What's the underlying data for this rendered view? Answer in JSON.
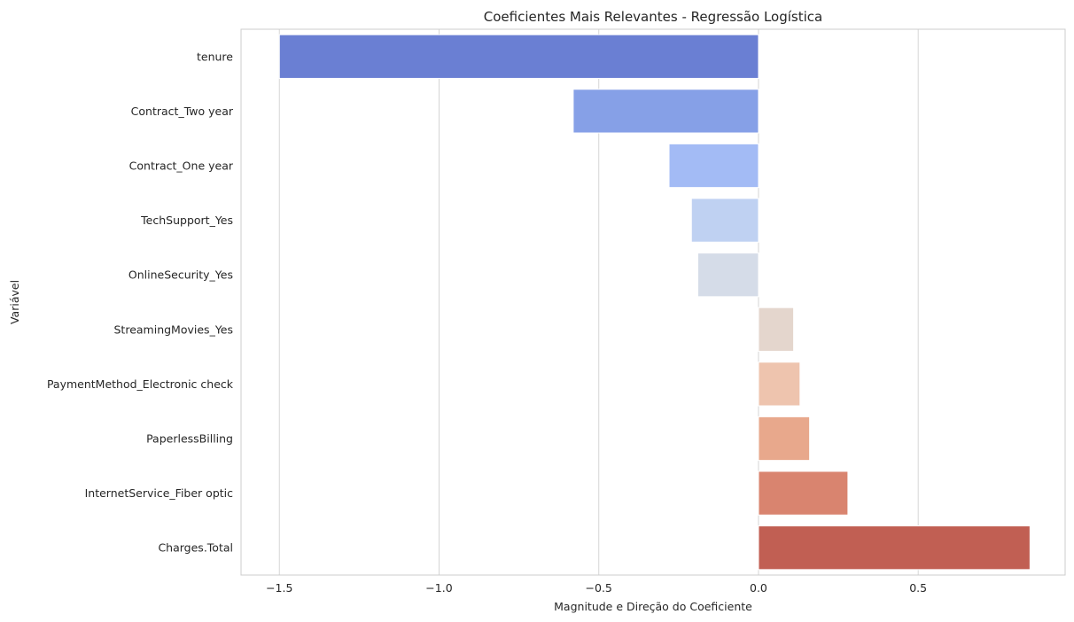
{
  "chart_data": {
    "type": "bar",
    "orientation": "horizontal",
    "title": "Coeficientes Mais Relevantes - Regressão Logística",
    "xlabel": "Magnitude e Direção do Coeficiente",
    "ylabel": "Variável",
    "categories": [
      "tenure",
      "Contract_Two year",
      "Contract_One year",
      "TechSupport_Yes",
      "OnlineSecurity_Yes",
      "StreamingMovies_Yes",
      "PaymentMethod_Electronic check",
      "PaperlessBilling",
      "InternetService_Fiber optic",
      "Charges.Total"
    ],
    "values": [
      -1.5,
      -0.58,
      -0.28,
      -0.21,
      -0.19,
      0.11,
      0.13,
      0.16,
      0.28,
      0.85
    ],
    "colors": [
      "#6a7fd3",
      "#86a0e7",
      "#a3bbf5",
      "#bfd1f2",
      "#d5dce8",
      "#e4d6cd",
      "#eec4ae",
      "#e8a88c",
      "#d9846f",
      "#c15f53"
    ],
    "xlim": [
      -1.62,
      0.96
    ],
    "xticks": [
      -1.5,
      -1.0,
      -0.5,
      0.0,
      0.5
    ],
    "xtick_labels": [
      "−1.5",
      "−1.0",
      "−0.5",
      "0.0",
      "0.5"
    ],
    "grid": "x",
    "legend": "none"
  }
}
